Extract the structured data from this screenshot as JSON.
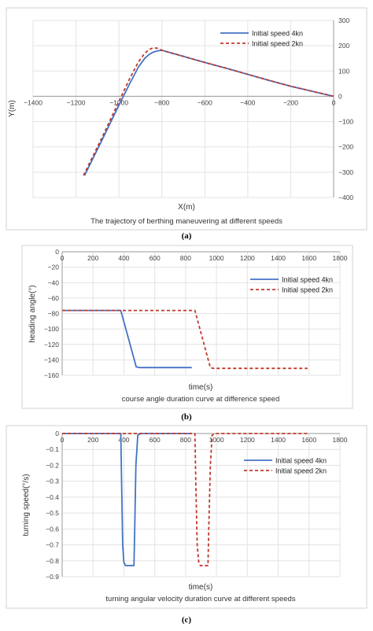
{
  "chart_data": [
    {
      "type": "line",
      "panel_label": "(a)",
      "xlabel": "X(m)",
      "ylabel": "Y(m)",
      "caption": "The trajectory of berthing maneuvering at different speeds",
      "xlim": [
        -1400,
        0
      ],
      "ylim": [
        -400,
        300
      ],
      "xticks": [
        -1400,
        -1200,
        -1000,
        -800,
        -600,
        -400,
        -200,
        0
      ],
      "yticks": [
        -400,
        -300,
        -200,
        -100,
        0,
        100,
        200,
        300
      ],
      "tick_labels": {
        "x": [
          "−1400",
          "−1200",
          "−1000",
          "−800",
          "−600",
          "−400",
          "−200",
          "0"
        ],
        "y": [
          "−400",
          "−300",
          "−200",
          "−100",
          "0",
          "100",
          "200",
          "300"
        ]
      },
      "grid": true,
      "legend": "top-right",
      "series": [
        {
          "name": "Initial speed 4kn",
          "color": "#4472c4",
          "style": "solid",
          "x": [
            -1160,
            -1080,
            -1000,
            -950,
            -910,
            -880,
            -860,
            -840,
            -820,
            -800,
            -700,
            -600,
            -500,
            -400,
            -300,
            -200,
            -100,
            0
          ],
          "y": [
            -313,
            -175,
            -35,
            50,
            115,
            150,
            165,
            175,
            180,
            182,
            158,
            134,
            111,
            87,
            63,
            40,
            20,
            0
          ]
        },
        {
          "name": "Initial speed 2kn",
          "color": "#c0392b",
          "style": "dashed",
          "x": [
            -1165,
            -1080,
            -1000,
            -950,
            -910,
            -880,
            -860,
            -840,
            -820,
            -800,
            -700,
            -600,
            -500,
            -400,
            -300,
            -200,
            -100,
            0
          ],
          "y": [
            -313,
            -165,
            -20,
            70,
            135,
            170,
            185,
            192,
            190,
            182,
            158,
            134,
            111,
            87,
            63,
            40,
            20,
            0
          ]
        }
      ]
    },
    {
      "type": "line",
      "panel_label": "(b)",
      "xlabel": "time(s)",
      "ylabel": "heading angle(°)",
      "caption": "course angle duration curve at difference speed",
      "xlim": [
        0,
        1800
      ],
      "ylim": [
        -160,
        0
      ],
      "xticks": [
        0,
        200,
        400,
        600,
        800,
        1000,
        1200,
        1400,
        1600,
        1800
      ],
      "yticks": [
        -160,
        -140,
        -120,
        -100,
        -80,
        -60,
        -40,
        -20,
        0
      ],
      "tick_labels": {
        "x": [
          "0",
          "200",
          "400",
          "600",
          "800",
          "1000",
          "1200",
          "1400",
          "1600",
          "1800"
        ],
        "y": [
          "−160",
          "−140",
          "−120",
          "−100",
          "−80",
          "−60",
          "−40",
          "−20",
          "0"
        ]
      },
      "grid": true,
      "legend": "right",
      "series": [
        {
          "name": "Initial speed 4kn",
          "color": "#4472c4",
          "style": "solid",
          "x": [
            0,
            380,
            480,
            500,
            840
          ],
          "y": [
            -76,
            -76,
            -149,
            -150,
            -150
          ]
        },
        {
          "name": "Initial speed 2kn",
          "color": "#c0392b",
          "style": "dashed",
          "x": [
            0,
            860,
            960,
            980,
            1590
          ],
          "y": [
            -76,
            -76,
            -150,
            -151,
            -151
          ]
        }
      ]
    },
    {
      "type": "line",
      "panel_label": "(c)",
      "xlabel": "time(s)",
      "ylabel": "turning speed(°/s)",
      "caption": "turning angular velocity duration curve at different speeds",
      "xlim": [
        0,
        1800
      ],
      "ylim": [
        -0.9,
        0
      ],
      "xticks": [
        0,
        200,
        400,
        600,
        800,
        1000,
        1200,
        1400,
        1600,
        1800
      ],
      "yticks": [
        -0.9,
        -0.8,
        -0.7,
        -0.6,
        -0.5,
        -0.4,
        -0.3,
        -0.2,
        -0.1,
        0
      ],
      "tick_labels": {
        "x": [
          "0",
          "200",
          "400",
          "600",
          "800",
          "1000",
          "1200",
          "1400",
          "1600",
          "1800"
        ],
        "y": [
          "−0.9",
          "−0.8",
          "−0.7",
          "−0.6",
          "−0.5",
          "−0.4",
          "−0.3",
          "−0.2",
          "−0.1",
          "0"
        ]
      },
      "grid": true,
      "legend": "right",
      "series": [
        {
          "name": "Initial speed 4kn",
          "color": "#4472c4",
          "style": "solid",
          "x": [
            0,
            380,
            385,
            392,
            400,
            410,
            440,
            465,
            470,
            478,
            490,
            510,
            840
          ],
          "y": [
            0,
            0,
            -0.3,
            -0.7,
            -0.81,
            -0.83,
            -0.83,
            -0.83,
            -0.6,
            -0.2,
            -0.01,
            0,
            0
          ]
        },
        {
          "name": "Initial speed 2kn",
          "color": "#c0392b",
          "style": "dashed",
          "x": [
            0,
            860,
            866,
            875,
            885,
            895,
            930,
            945,
            950,
            960,
            972,
            990,
            1590
          ],
          "y": [
            0,
            0,
            -0.3,
            -0.7,
            -0.81,
            -0.83,
            -0.83,
            -0.83,
            -0.6,
            -0.2,
            -0.01,
            0,
            0
          ]
        }
      ]
    }
  ]
}
